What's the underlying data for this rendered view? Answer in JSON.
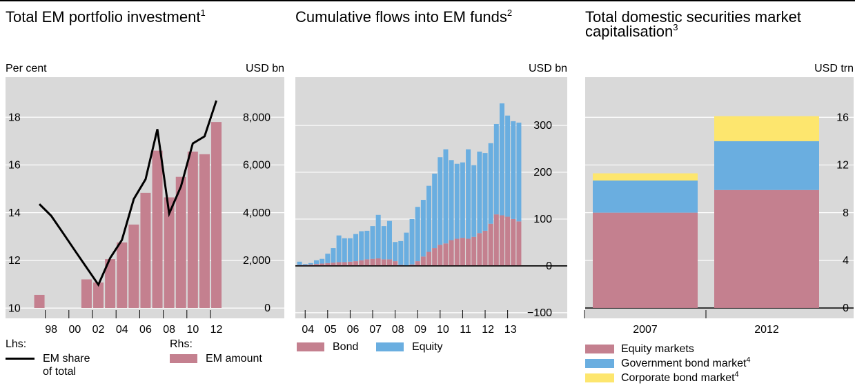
{
  "chart_data": [
    {
      "type": "combo",
      "title": "Total EM portfolio investment",
      "title_sup": "1",
      "ylabel": "Per cent",
      "y2label": "USD bn",
      "categories": [
        null,
        "98",
        null,
        "00",
        null,
        "02",
        null,
        "04",
        null,
        "06",
        null,
        "08",
        null,
        "10",
        null,
        "12"
      ],
      "ylim": [
        9.57,
        19.68
      ],
      "yticks": [
        10,
        12,
        14,
        16,
        18
      ],
      "y2lim": [
        -434,
        9682
      ],
      "y2ticks": [
        0,
        {
          "value": 2000,
          "label": "2,000"
        },
        {
          "value": 4000,
          "label": "4,000"
        },
        {
          "value": 6000,
          "label": "6,000"
        },
        {
          "value": 8000,
          "label": "8,000"
        }
      ],
      "grid": true,
      "series": [
        {
          "name": "EM share of total",
          "legend_heading": "Lhs:",
          "kind": "line",
          "color": "#000000",
          "axis": "y",
          "values": [
            14.36,
            13.87,
            13.15,
            12.42,
            11.7,
            10.98,
            12.1,
            12.86,
            14.57,
            15.4,
            17.5,
            13.96,
            15.1,
            16.9,
            17.2,
            18.7
          ]
        },
        {
          "name": "EM amount",
          "legend_heading": "Rhs:",
          "kind": "bar",
          "color": "#c4808f",
          "axis": "y2",
          "values": [
            550,
            null,
            null,
            null,
            1200,
            1070,
            2050,
            2750,
            3500,
            4830,
            6600,
            4640,
            5500,
            6560,
            6450,
            7800
          ]
        }
      ]
    },
    {
      "type": "stackedbar",
      "title": "Cumulative flows into EM funds",
      "title_sup": "2",
      "ylabel": "USD bn",
      "categories": [
        "04",
        null,
        null,
        null,
        "05",
        null,
        null,
        null,
        "06",
        null,
        null,
        null,
        "07",
        null,
        null,
        null,
        "08",
        null,
        null,
        null,
        "09",
        null,
        null,
        null,
        "10",
        null,
        null,
        null,
        "11",
        null,
        null,
        null,
        "12",
        null,
        null,
        null,
        "13",
        null,
        null,
        null
      ],
      "ylim": [
        -112,
        403
      ],
      "yticks": [
        {
          "value": -100,
          "label": "−100"
        },
        0,
        100,
        200,
        300
      ],
      "grid": true,
      "series": [
        {
          "name": "Bond",
          "color": "#c4808f",
          "values": [
            2,
            2,
            3,
            4,
            5,
            6,
            7,
            8,
            8,
            9,
            10,
            12,
            14,
            15,
            16,
            14,
            14,
            10,
            2,
            0,
            3,
            10,
            20,
            30,
            38,
            45,
            48,
            55,
            58,
            60,
            58,
            62,
            70,
            75,
            90,
            110,
            108,
            105,
            100,
            95
          ]
        },
        {
          "name": "Equity",
          "color": "#6aaee0",
          "values": [
            7,
            2,
            3,
            8,
            10,
            20,
            31,
            57,
            51,
            50,
            58,
            62,
            61,
            70,
            93,
            71,
            82,
            41,
            51,
            71,
            97,
            116,
            121,
            141,
            159,
            187,
            201,
            171,
            160,
            161,
            191,
            153,
            174,
            166,
            172,
            193,
            239,
            216,
            209,
            211
          ]
        }
      ]
    },
    {
      "type": "stackedbar",
      "title": "Total domestic securities market capitalisation",
      "title_sup": "3",
      "ylabel": "USD trn",
      "categories": [
        "2007",
        "2012"
      ],
      "ylim": [
        -0.87,
        19.37
      ],
      "yticks": [
        0,
        4,
        8,
        12,
        16
      ],
      "grid": true,
      "series": [
        {
          "name": "Equity markets",
          "color": "#c4808f",
          "values": [
            8.0,
            9.9
          ]
        },
        {
          "name": "Government bond market",
          "name_sup": "4",
          "color": "#6aaee0",
          "values": [
            2.7,
            4.1
          ]
        },
        {
          "name": "Corporate bond market",
          "name_sup": "4",
          "color": "#fde66e",
          "values": [
            0.6,
            2.1
          ]
        }
      ]
    }
  ]
}
